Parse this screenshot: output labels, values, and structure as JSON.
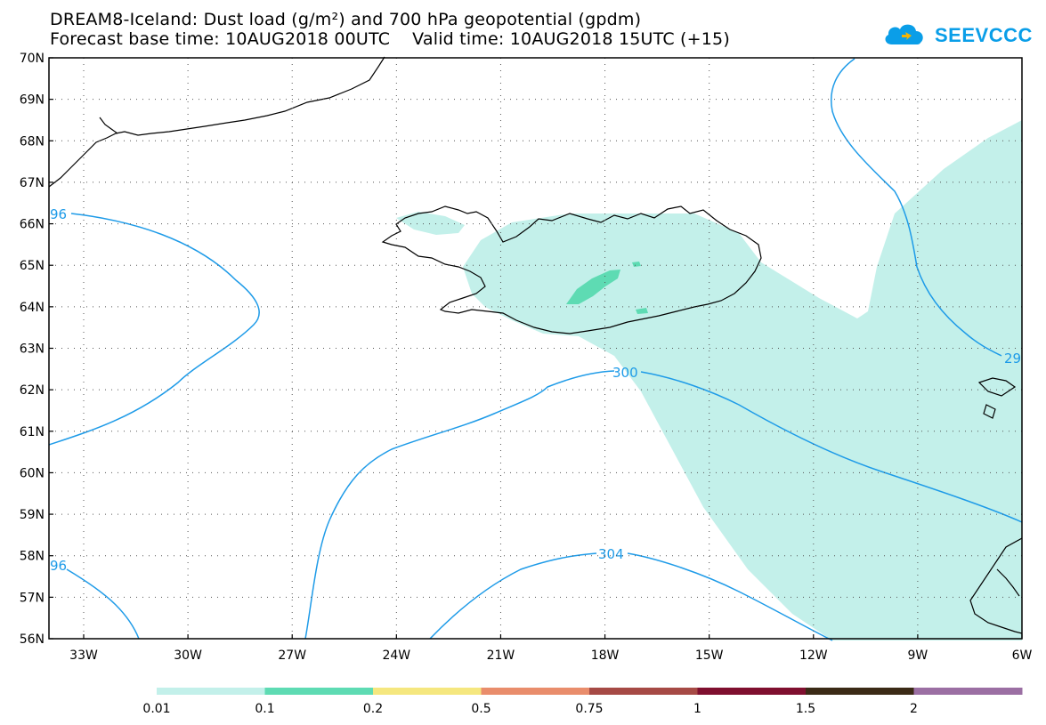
{
  "title": {
    "line1": "DREAM8-Iceland: Dust load (g/m²) and 700 hPa geopotential (gpdm)",
    "forecast_base": "Forecast base time: 10AUG2018 00UTC",
    "valid_time": "Valid time: 10AUG2018 15UTC (+15)"
  },
  "logo": {
    "text": "SEEVCCC",
    "icon": "cloud-logo-icon",
    "color": "#0a9ee8"
  },
  "map": {
    "lat_labels": [
      "70N",
      "69N",
      "68N",
      "67N",
      "66N",
      "65N",
      "64N",
      "63N",
      "62N",
      "61N",
      "60N",
      "59N",
      "58N",
      "57N",
      "56N"
    ],
    "lon_labels": [
      "33W",
      "30W",
      "27W",
      "24W",
      "21W",
      "18W",
      "15W",
      "12W",
      "9W",
      "6W"
    ],
    "contour_color": "#1e9be8",
    "contour_labels": [
      "96",
      "300",
      "304",
      "96",
      "29"
    ]
  },
  "colorbar": {
    "labels": [
      "0.01",
      "0.1",
      "0.2",
      "0.5",
      "0.75",
      "1",
      "1.5",
      "2"
    ],
    "colors": [
      "#c3f0ea",
      "#5edbb3",
      "#f5e77f",
      "#e98d6c",
      "#a64a45",
      "#7f0f2f",
      "#3b2a16",
      "#9b6fa3"
    ]
  }
}
